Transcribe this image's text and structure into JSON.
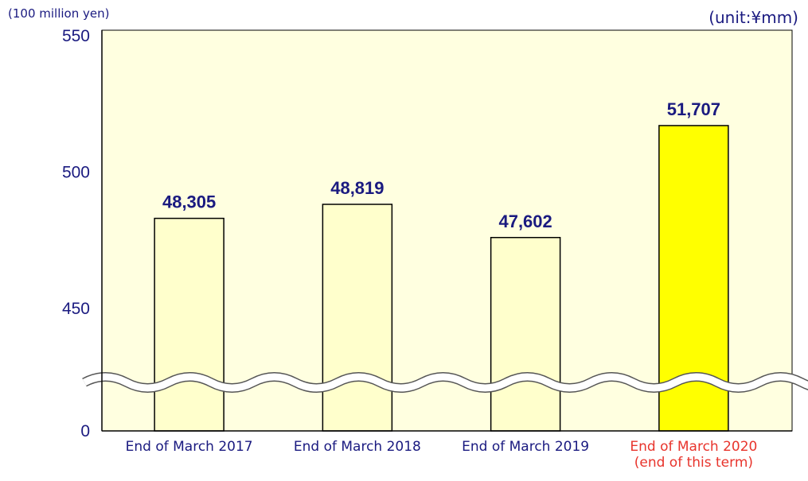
{
  "chart_data": {
    "type": "bar",
    "ylabel": "(100 million yen)",
    "unit_note": "(unit:¥mm)",
    "categories": [
      {
        "label": "End of March 2017",
        "sub": ""
      },
      {
        "label": "End of March 2018",
        "sub": ""
      },
      {
        "label": "End of March 2019",
        "sub": ""
      },
      {
        "label": "End of March 2020",
        "sub": "(end of this term)"
      }
    ],
    "values": [
      48305,
      48819,
      47602,
      51707
    ],
    "value_labels": [
      "48,305",
      "48,819",
      "47,602",
      "51,707"
    ],
    "yticks": [
      "0",
      "450",
      "500",
      "550"
    ],
    "ylim": [
      0,
      550
    ],
    "axis_break": true,
    "grid": false,
    "colors": {
      "bar": "#ffffcc",
      "highlight_bar": "#ffff00",
      "plot_background": "#ffffe0",
      "text": "#1a1a80",
      "highlight_text": "#e8342c"
    },
    "highlight_index": 3
  }
}
